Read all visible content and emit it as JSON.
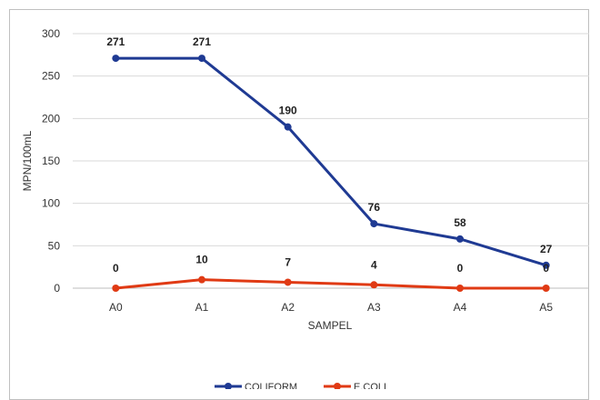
{
  "chart_data": {
    "type": "line",
    "categories": [
      "A0",
      "A1",
      "A2",
      "A3",
      "A4",
      "A5"
    ],
    "series": [
      {
        "name": "COLIFORM",
        "values": [
          271,
          271,
          190,
          76,
          58,
          27
        ],
        "color": "#1f3a93"
      },
      {
        "name": "E.COLI",
        "values": [
          0,
          10,
          7,
          4,
          0,
          0
        ],
        "color": "#e03a14"
      }
    ],
    "title": "",
    "xlabel": "SAMPEL",
    "ylabel": "MPN/100mL",
    "ylim": [
      0,
      300
    ],
    "yticks": [
      "0",
      "50",
      "100",
      "150",
      "200",
      "250",
      "300"
    ],
    "grid": true,
    "legend_position": "bottom"
  }
}
